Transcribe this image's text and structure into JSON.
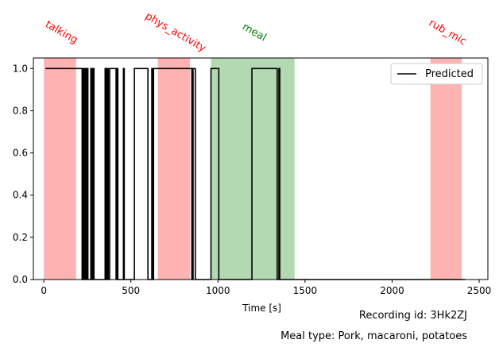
{
  "chart_data": {
    "type": "line",
    "xlabel": "Time [s]",
    "ylabel": "",
    "xlim": [
      -60,
      2550
    ],
    "ylim": [
      0.0,
      1.05
    ],
    "xticks": [
      0,
      500,
      1000,
      1500,
      2000,
      2500
    ],
    "yticks": [
      0.0,
      0.2,
      0.4,
      0.6,
      0.8,
      1.0
    ],
    "grid": false,
    "legend": {
      "placement": "upper-right",
      "entries": [
        "Predicted"
      ]
    },
    "series": [
      {
        "name": "Predicted",
        "color": "#000000",
        "points": [
          [
            10,
            1
          ],
          [
            220,
            1
          ],
          [
            220,
            0
          ],
          [
            225,
            0
          ],
          [
            225,
            1
          ],
          [
            232,
            1
          ],
          [
            232,
            0
          ],
          [
            236,
            0
          ],
          [
            236,
            1
          ],
          [
            242,
            1
          ],
          [
            242,
            0
          ],
          [
            246,
            0
          ],
          [
            246,
            1
          ],
          [
            253,
            1
          ],
          [
            253,
            0
          ],
          [
            270,
            0
          ],
          [
            270,
            1
          ],
          [
            276,
            1
          ],
          [
            276,
            0
          ],
          [
            282,
            0
          ],
          [
            282,
            1
          ],
          [
            288,
            1
          ],
          [
            288,
            0
          ],
          [
            352,
            0
          ],
          [
            352,
            1
          ],
          [
            358,
            1
          ],
          [
            358,
            0
          ],
          [
            364,
            0
          ],
          [
            364,
            1
          ],
          [
            370,
            1
          ],
          [
            370,
            0
          ],
          [
            378,
            0
          ],
          [
            378,
            1
          ],
          [
            415,
            1
          ],
          [
            415,
            0
          ],
          [
            420,
            0
          ],
          [
            420,
            1
          ],
          [
            425,
            1
          ],
          [
            425,
            0
          ],
          [
            457,
            0
          ],
          [
            457,
            1
          ],
          [
            462,
            1
          ],
          [
            462,
            0
          ],
          [
            520,
            0
          ],
          [
            520,
            1
          ],
          [
            598,
            1
          ],
          [
            598,
            0
          ],
          [
            620,
            0
          ],
          [
            620,
            1
          ],
          [
            625,
            1
          ],
          [
            625,
            0
          ],
          [
            630,
            0
          ],
          [
            630,
            1
          ],
          [
            850,
            1
          ],
          [
            850,
            0
          ],
          [
            857,
            0
          ],
          [
            857,
            1
          ],
          [
            870,
            1
          ],
          [
            870,
            0
          ],
          [
            960,
            0
          ],
          [
            960,
            1
          ],
          [
            1005,
            1
          ],
          [
            1005,
            0
          ],
          [
            1195,
            0
          ],
          [
            1195,
            1
          ],
          [
            1340,
            1
          ],
          [
            1340,
            0
          ],
          [
            1350,
            0
          ],
          [
            1350,
            1
          ],
          [
            1355,
            1
          ],
          [
            1355,
            0
          ],
          [
            2420,
            0
          ]
        ]
      }
    ],
    "annotations": [
      {
        "label": "talking",
        "x_start": 0,
        "x_end": 185,
        "color": "#ff0000"
      },
      {
        "label": "phys_activity",
        "x_start": 655,
        "x_end": 840,
        "color": "#ff0000"
      },
      {
        "label": "meal",
        "x_start": 960,
        "x_end": 1440,
        "color": "#008000"
      },
      {
        "label": "rub_mic",
        "x_start": 2220,
        "x_end": 2400,
        "color": "#ff0000"
      }
    ],
    "footer": {
      "recording_id": "Recording id: 3Hk2ZJ",
      "meal_type": "Meal type: Pork, macaroni, potatoes"
    }
  }
}
